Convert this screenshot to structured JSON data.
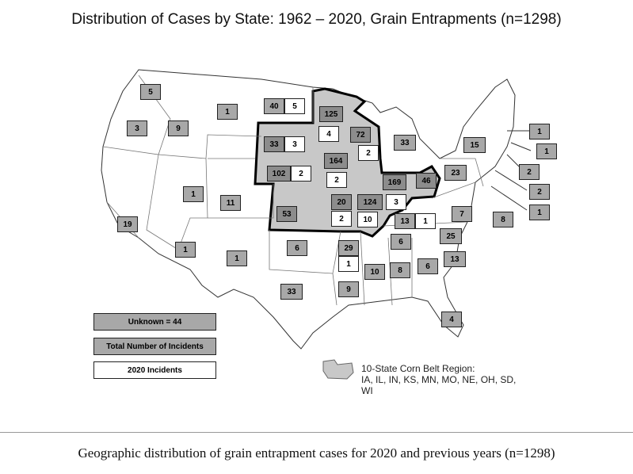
{
  "title": "Distribution of Cases by State: 1962 – 2020, Grain Entrapments (n=1298)",
  "caption": "Geographic distribution of grain entrapment cases for 2020 and previous years (n=1298)",
  "legend": {
    "unknown": "Unknown = 44",
    "total": "Total Number of Incidents",
    "incidents_2020": "2020 Incidents",
    "corn_belt": "10-State Corn Belt Region:",
    "corn_belt_states": "IA, IL, IN, KS, MN, MO, NE, OH, SD,",
    "corn_belt_states2": "WI"
  },
  "states": {
    "WA": {
      "total": "5"
    },
    "OR": {
      "total": "3"
    },
    "ID": {
      "total": "9"
    },
    "MT": {
      "total": "1"
    },
    "ND": {
      "total": "40",
      "y2020": "5"
    },
    "MN": {
      "total": "125",
      "y2020": "4"
    },
    "SD": {
      "total": "33",
      "y2020": "3"
    },
    "WI": {
      "total": "72",
      "y2020": "2"
    },
    "MI": {
      "total": "33"
    },
    "NE": {
      "total": "102",
      "y2020": "2"
    },
    "IA": {
      "total": "164",
      "y2020": "2"
    },
    "IL": {
      "total": "169",
      "y2020": "3"
    },
    "IN": {
      "total": "124",
      "y2020": "10"
    },
    "OH": {
      "total": "46"
    },
    "KS": {
      "total": "53"
    },
    "MO": {
      "total": "20",
      "y2020": "2"
    },
    "UT": {
      "total": "1"
    },
    "CO": {
      "total": "11"
    },
    "CA": {
      "total": "19"
    },
    "AZ": {
      "total": "1"
    },
    "NM": {
      "total": "1"
    },
    "OK": {
      "total": "6"
    },
    "TX": {
      "total": "33"
    },
    "AR": {
      "total": "29",
      "y2020": "1"
    },
    "LA": {
      "total": "9"
    },
    "MS": {
      "total": "10"
    },
    "AL": {
      "total": "8"
    },
    "TN": {
      "total": "6"
    },
    "KY": {
      "total": "13",
      "y2020": "1"
    },
    "GA": {
      "total": "6"
    },
    "SC": {
      "total": "13"
    },
    "NC": {
      "total": "25"
    },
    "VA": {
      "total": "7"
    },
    "PA": {
      "total": "23"
    },
    "NY": {
      "total": "15"
    },
    "FL": {
      "total": "4"
    },
    "MD": {
      "total": "8"
    },
    "VT": {
      "total": "1"
    },
    "NH": {
      "total": "1"
    },
    "MA": {
      "total": "2"
    },
    "NJ": {
      "total": "2"
    },
    "DE": {
      "total": "1"
    }
  },
  "colors": {
    "total_fill": "#a8a8a8",
    "dark_fill": "#8c8c8c",
    "corn_belt_fill": "#c8c8c8",
    "outline": "#000000"
  }
}
